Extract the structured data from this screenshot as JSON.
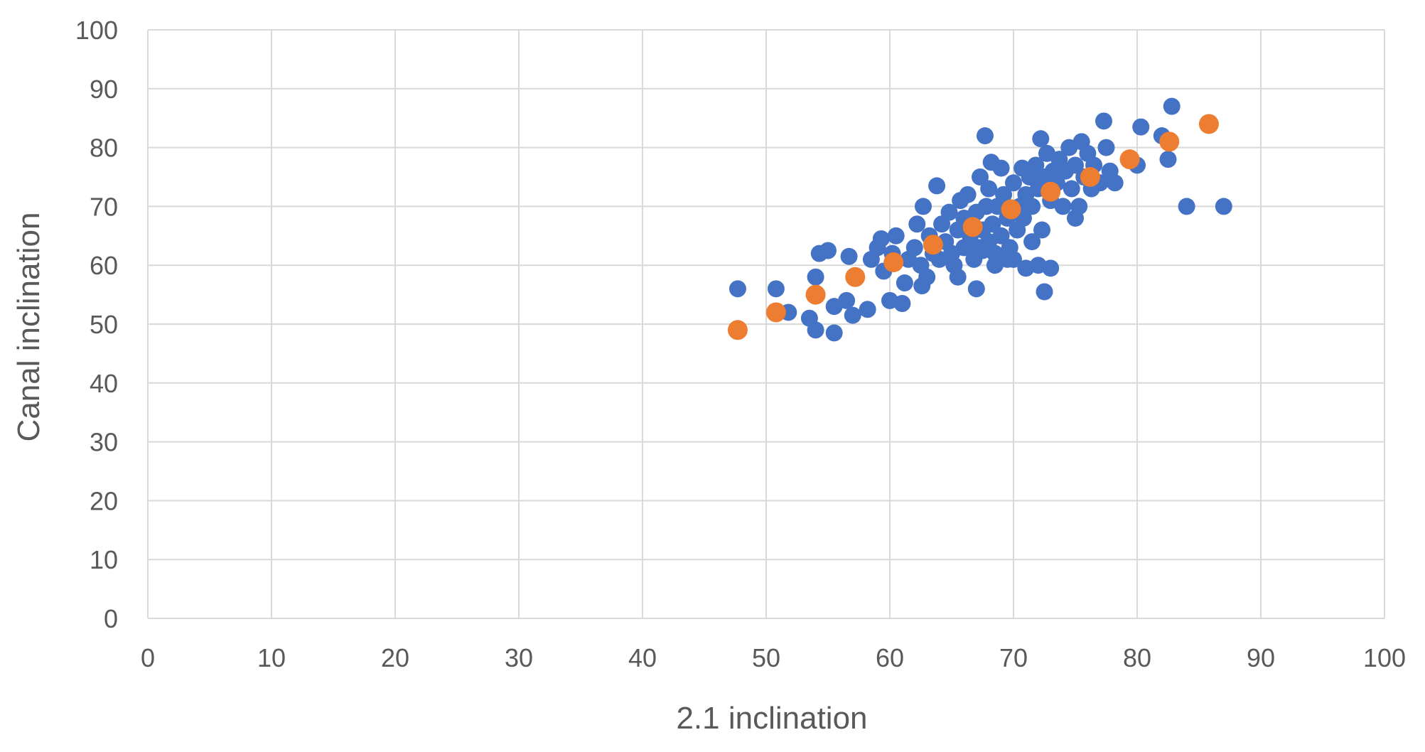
{
  "chart_data": {
    "type": "scatter",
    "xlabel": "2.1 inclination",
    "ylabel": "Canal inclination",
    "xlim": [
      0,
      100
    ],
    "ylim": [
      0,
      100
    ],
    "x_ticks": [
      "0",
      "10",
      "20",
      "30",
      "40",
      "50",
      "60",
      "70",
      "80",
      "90",
      "100"
    ],
    "y_ticks": [
      "0",
      "10",
      "20",
      "30",
      "40",
      "50",
      "60",
      "70",
      "80",
      "90",
      "100"
    ],
    "grid": true,
    "legend": "none",
    "series": [
      {
        "color": "#4472c4",
        "points": [
          [
            47.7,
            56
          ],
          [
            50.8,
            56
          ],
          [
            51.8,
            52
          ],
          [
            53.5,
            51
          ],
          [
            54,
            49
          ],
          [
            54,
            58
          ],
          [
            54.3,
            62
          ],
          [
            55,
            62.5
          ],
          [
            55.5,
            48.5
          ],
          [
            55.5,
            53
          ],
          [
            56.5,
            54
          ],
          [
            56.7,
            61.5
          ],
          [
            57,
            51.5
          ],
          [
            57.2,
            58
          ],
          [
            58.2,
            52.5
          ],
          [
            58.5,
            61
          ],
          [
            59,
            63
          ],
          [
            59.3,
            64.5
          ],
          [
            59.5,
            59
          ],
          [
            60,
            54
          ],
          [
            60.2,
            62
          ],
          [
            60.5,
            65
          ],
          [
            61,
            53.5
          ],
          [
            61.2,
            57
          ],
          [
            61.5,
            61
          ],
          [
            62,
            63
          ],
          [
            62.2,
            67
          ],
          [
            62.5,
            60
          ],
          [
            62.6,
            56.5
          ],
          [
            62.7,
            70
          ],
          [
            63,
            58
          ],
          [
            63.2,
            65
          ],
          [
            63.5,
            62
          ],
          [
            63.8,
            73.5
          ],
          [
            64,
            61
          ],
          [
            64.2,
            67
          ],
          [
            64.5,
            64
          ],
          [
            64.8,
            69
          ],
          [
            65,
            62
          ],
          [
            65.2,
            60
          ],
          [
            65.5,
            66
          ],
          [
            65.7,
            71
          ],
          [
            66,
            63
          ],
          [
            66,
            68
          ],
          [
            66.3,
            72
          ],
          [
            66.5,
            65
          ],
          [
            66.8,
            61
          ],
          [
            67,
            56
          ],
          [
            67,
            69
          ],
          [
            67.2,
            63
          ],
          [
            67.3,
            75
          ],
          [
            67.5,
            66
          ],
          [
            67.7,
            82
          ],
          [
            67.8,
            70
          ],
          [
            68,
            64
          ],
          [
            68,
            73
          ],
          [
            68.3,
            67
          ],
          [
            68.5,
            60
          ],
          [
            68.5,
            62
          ],
          [
            68.7,
            70
          ],
          [
            69,
            65
          ],
          [
            69,
            76.5
          ],
          [
            69.2,
            72
          ],
          [
            69.5,
            68
          ],
          [
            69.7,
            63
          ],
          [
            70,
            61
          ],
          [
            70,
            74
          ],
          [
            70.3,
            66
          ],
          [
            70.5,
            70
          ],
          [
            70.8,
            68
          ],
          [
            71,
            59.5
          ],
          [
            71,
            72
          ],
          [
            71.3,
            75
          ],
          [
            71.5,
            70
          ],
          [
            71.8,
            77
          ],
          [
            72,
            73
          ],
          [
            72,
            60
          ],
          [
            72.2,
            81.5
          ],
          [
            72.3,
            66
          ],
          [
            72.5,
            55.5
          ],
          [
            72.5,
            75
          ],
          [
            72.7,
            79
          ],
          [
            73,
            71
          ],
          [
            73,
            59.5
          ],
          [
            73.2,
            76
          ],
          [
            73.5,
            74
          ],
          [
            73.7,
            78
          ],
          [
            74,
            70
          ],
          [
            74.2,
            76
          ],
          [
            74.5,
            80
          ],
          [
            74.7,
            73
          ],
          [
            75,
            77
          ],
          [
            75,
            68
          ],
          [
            75.3,
            70
          ],
          [
            75.5,
            81
          ],
          [
            75.7,
            75
          ],
          [
            76,
            79
          ],
          [
            76.3,
            73
          ],
          [
            76.5,
            77
          ],
          [
            77,
            74
          ],
          [
            77.3,
            84.5
          ],
          [
            77.5,
            80
          ],
          [
            77.8,
            76
          ],
          [
            78.2,
            74
          ],
          [
            80,
            77
          ],
          [
            80.3,
            83.5
          ],
          [
            82,
            82
          ],
          [
            82.5,
            78
          ],
          [
            82.8,
            87
          ],
          [
            84,
            70
          ],
          [
            87,
            70
          ],
          [
            65.5,
            58
          ],
          [
            67.5,
            62.5
          ],
          [
            69.5,
            61
          ],
          [
            71.5,
            64
          ],
          [
            70.7,
            76.5
          ],
          [
            68.2,
            77.5
          ]
        ]
      },
      {
        "color": "#ed7d31",
        "points": [
          [
            47.7,
            49
          ],
          [
            50.8,
            52
          ],
          [
            54,
            55
          ],
          [
            57.2,
            58
          ],
          [
            60.3,
            60.5
          ],
          [
            63.5,
            63.5
          ],
          [
            66.7,
            66.5
          ],
          [
            69.8,
            69.5
          ],
          [
            73,
            72.5
          ],
          [
            76.2,
            75
          ],
          [
            79.4,
            78
          ],
          [
            82.6,
            81
          ],
          [
            85.8,
            84
          ]
        ]
      }
    ]
  }
}
